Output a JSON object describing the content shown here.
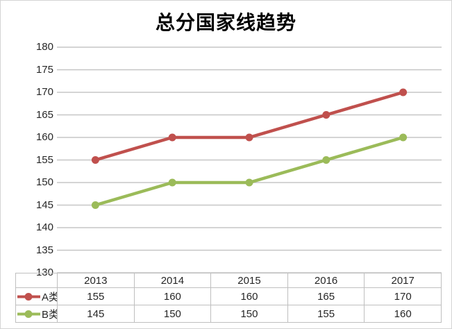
{
  "title": "总分国家线趋势",
  "chart_data": {
    "type": "line",
    "title": "总分国家线趋势",
    "categories": [
      "2013",
      "2014",
      "2015",
      "2016",
      "2017"
    ],
    "series": [
      {
        "name": "A类",
        "color": "#C0504D",
        "values": [
          155,
          160,
          160,
          165,
          170
        ]
      },
      {
        "name": "B类",
        "color": "#9BBB59",
        "values": [
          145,
          150,
          150,
          155,
          160
        ]
      }
    ],
    "xlabel": "",
    "ylabel": "",
    "ylim": [
      130,
      180
    ],
    "ytick_step": 5,
    "yticks": [
      180,
      175,
      170,
      165,
      160,
      155,
      150,
      145,
      140,
      135,
      130
    ],
    "grid": "horizontal",
    "gridline_color": "#C6C6C6",
    "table_border_color": "#BFBFBF",
    "text_color": "#262626",
    "legend_position": "data-table-left"
  }
}
